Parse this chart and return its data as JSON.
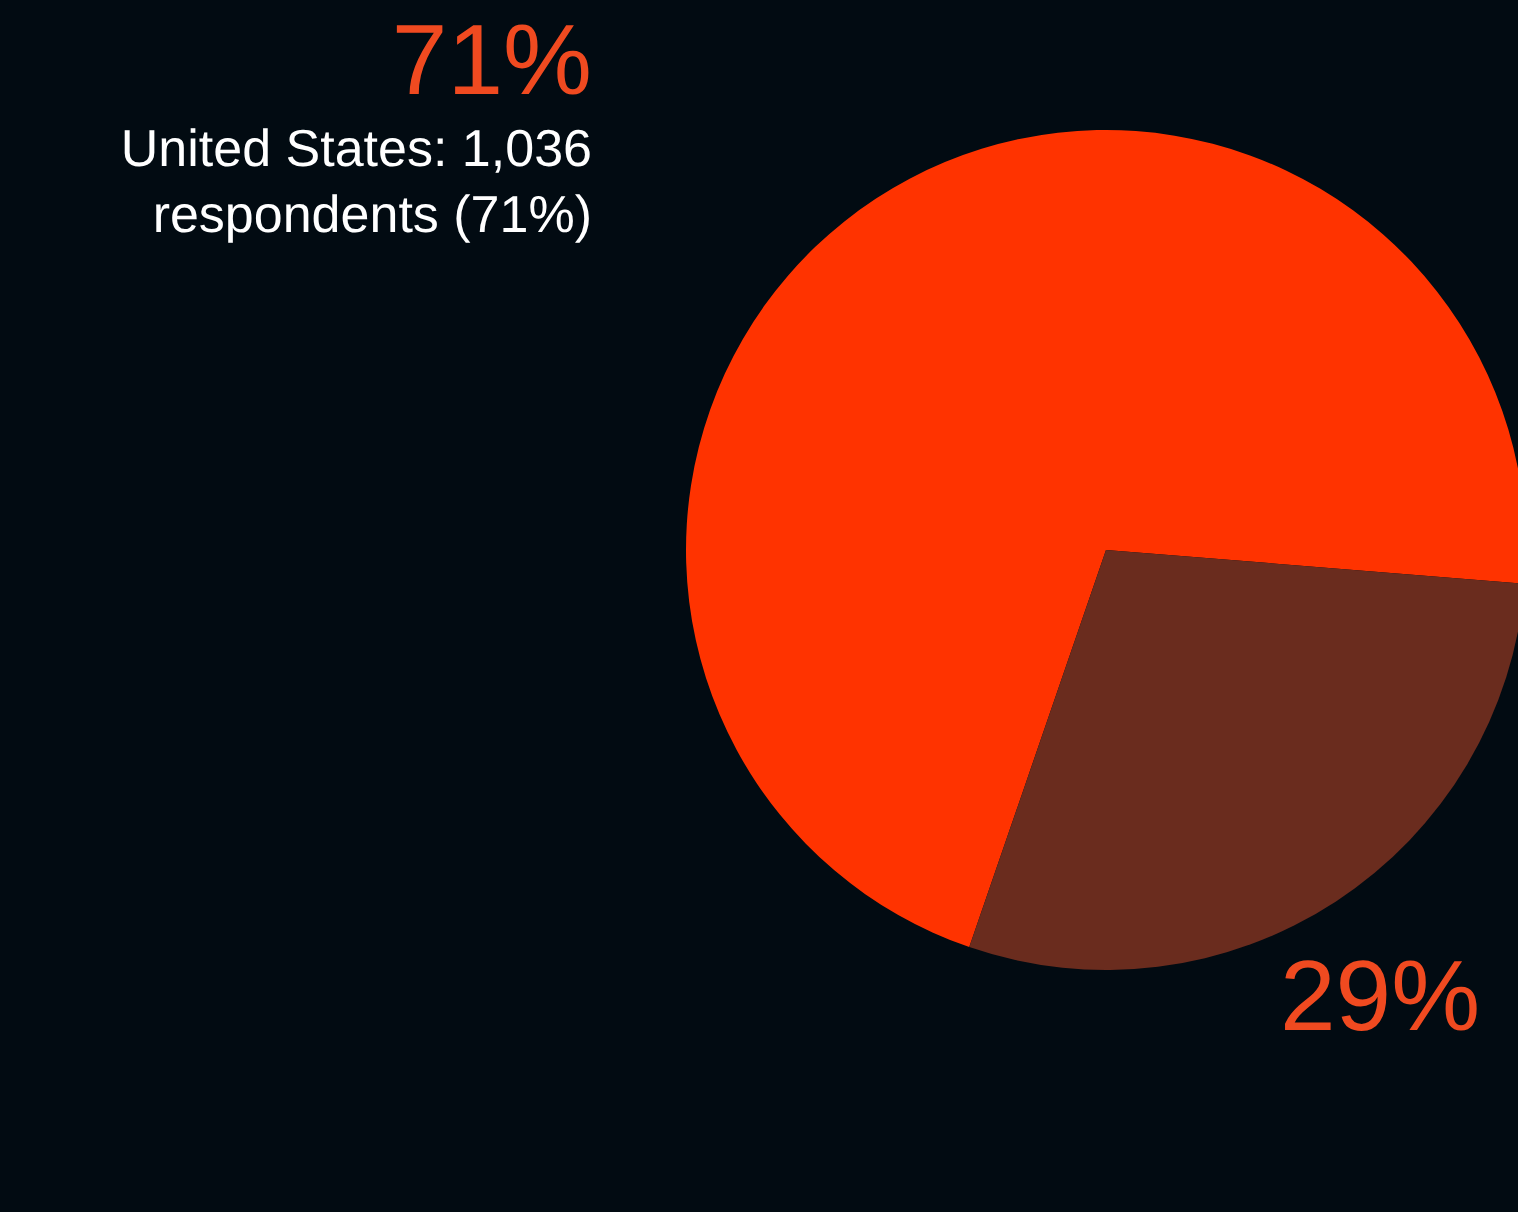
{
  "chart_data": {
    "type": "pie",
    "categories": [
      null,
      null
    ],
    "values": [
      71,
      29
    ],
    "colors": [
      "#ff3300",
      "#6a2c1e"
    ],
    "value_labels": [
      "71%",
      "29%"
    ],
    "annotations": [
      "United States: 1,036 respondents (71%)"
    ]
  }
}
